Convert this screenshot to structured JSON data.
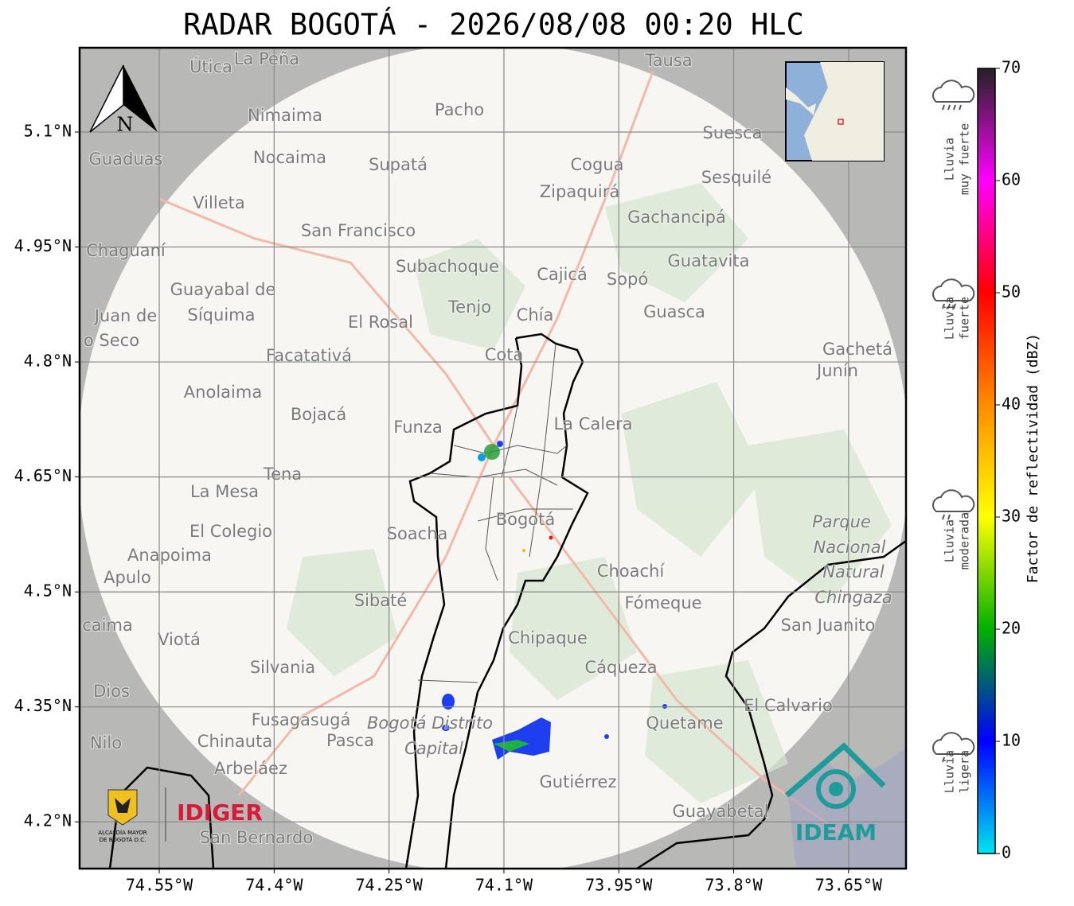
{
  "chart_data": {
    "type": "map",
    "title": "RADAR BOGOTÁ - 2026/08/08 00:20 HLC",
    "xlim": [
      -74.654,
      -73.575
    ],
    "ylim": [
      4.139,
      5.21
    ],
    "xticks": [
      {
        "value": -74.55,
        "label": "74.55°W"
      },
      {
        "value": -74.4,
        "label": "74.4°W"
      },
      {
        "value": -74.25,
        "label": "74.25°W"
      },
      {
        "value": -74.1,
        "label": "74.1°W"
      },
      {
        "value": -73.95,
        "label": "73.95°W"
      },
      {
        "value": -73.8,
        "label": "73.8°W"
      },
      {
        "value": -73.65,
        "label": "73.65°W"
      }
    ],
    "yticks": [
      {
        "value": 5.1,
        "label": "5.1°N"
      },
      {
        "value": 4.95,
        "label": "4.95°N"
      },
      {
        "value": 4.8,
        "label": "4.8°N"
      },
      {
        "value": 4.65,
        "label": "4.65°N"
      },
      {
        "value": 4.5,
        "label": "4.5°N"
      },
      {
        "value": 4.35,
        "label": "4.35°N"
      },
      {
        "value": 4.2,
        "label": "4.2°N"
      }
    ],
    "grid": true,
    "colorbar": {
      "label": "Factor de reflectividad (dBZ)",
      "lim": [
        0,
        70
      ],
      "ticks": [
        0,
        10,
        20,
        30,
        40,
        50,
        60,
        70
      ],
      "colors": [
        "#00e5ee",
        "#0000ff",
        "#00b000",
        "#ffff00",
        "#ff8c00",
        "#ff0000",
        "#ff00ff",
        "#222222"
      ]
    },
    "rain_levels": [
      {
        "lines": [
          "Lluvia",
          "ligera"
        ]
      },
      {
        "lines": [
          "Lluvia",
          "moderada"
        ]
      },
      {
        "lines": [
          "Lluvia",
          "fuerte"
        ]
      },
      {
        "lines": [
          "Lluvia",
          "muy fuerte"
        ]
      }
    ]
  },
  "compass": "N",
  "logos": {
    "alcaldia": [
      "ALCALDÍA MAYOR",
      "DE BOGOTÁ D.C."
    ],
    "idiger": "IDIGER",
    "ideam": "IDEAM"
  },
  "places": [
    "Útica",
    "La Peña",
    "Tausa",
    "Pacho",
    "Nimaima",
    "Suesca",
    "Guaduas",
    "Nocaima",
    "Supatá",
    "Cogua",
    "Sesquilé",
    "Zipaquirá",
    "Villeta",
    "Gachancipá",
    "San Francisco",
    "Chaguaní",
    "Guatavita",
    "Subachoque",
    "Cajicá",
    "Sopó",
    "Guayabal de",
    "Síquima",
    "Juan de",
    "Tenjo",
    "Chía",
    "Guasca",
    "El Rosal",
    "o Seco",
    "Facatativá",
    "Cota",
    "Gachetá",
    "Junín",
    "Anolaima",
    "Bojacá",
    "Funza",
    "La Calera",
    "Tena",
    "La Mesa",
    "Bogotá",
    "Parque",
    "Nacional",
    "Natural",
    "Chingaza",
    "El Colegio",
    "Soacha",
    "Anapoima",
    "Apulo",
    "Choachí",
    "Sibaté",
    "Fómeque",
    "San Juanito",
    "caima",
    "Viotá",
    "Chipaque",
    "Silvania",
    "Cáqueza",
    "Dios",
    "El Calvario",
    "Fusagasugá",
    "Bogotá Distrito",
    "Quetame",
    "Nilo",
    "Chinauta",
    "Pasca",
    "Capital",
    "Arbeláez",
    "Gutiérrez",
    "Guayabetal",
    "San Bernardo"
  ]
}
